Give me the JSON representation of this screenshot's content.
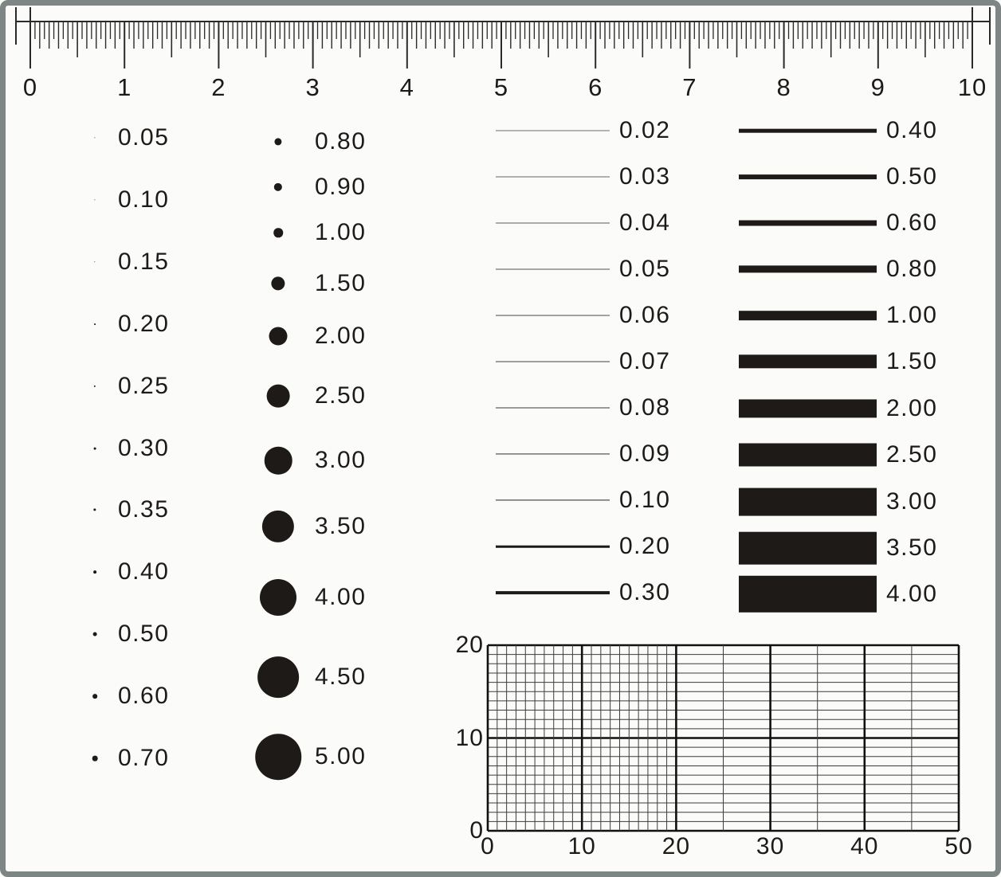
{
  "ruler": {
    "min": 0,
    "max": 10,
    "minor_step": 0.05,
    "tick_labels": [
      "0",
      "1",
      "2",
      "3",
      "4",
      "5",
      "6",
      "7",
      "8",
      "9",
      "10"
    ]
  },
  "dot_series_small": {
    "items": [
      {
        "label": "0.05",
        "value": 0.05
      },
      {
        "label": "0.10",
        "value": 0.1
      },
      {
        "label": "0.15",
        "value": 0.15
      },
      {
        "label": "0.20",
        "value": 0.2
      },
      {
        "label": "0.25",
        "value": 0.25
      },
      {
        "label": "0.30",
        "value": 0.3
      },
      {
        "label": "0.35",
        "value": 0.35
      },
      {
        "label": "0.40",
        "value": 0.4
      },
      {
        "label": "0.50",
        "value": 0.5
      },
      {
        "label": "0.60",
        "value": 0.6
      },
      {
        "label": "0.70",
        "value": 0.7
      }
    ]
  },
  "dot_series_large": {
    "items": [
      {
        "label": "0.80",
        "value": 0.8
      },
      {
        "label": "0.90",
        "value": 0.9
      },
      {
        "label": "1.00",
        "value": 1.0
      },
      {
        "label": "1.50",
        "value": 1.5
      },
      {
        "label": "2.00",
        "value": 2.0
      },
      {
        "label": "2.50",
        "value": 2.5
      },
      {
        "label": "3.00",
        "value": 3.0
      },
      {
        "label": "3.50",
        "value": 3.5
      },
      {
        "label": "4.00",
        "value": 4.0
      },
      {
        "label": "4.50",
        "value": 4.5
      },
      {
        "label": "5.00",
        "value": 5.0
      }
    ]
  },
  "line_series": {
    "items": [
      {
        "label": "0.02",
        "value": 0.02
      },
      {
        "label": "0.03",
        "value": 0.03
      },
      {
        "label": "0.04",
        "value": 0.04
      },
      {
        "label": "0.05",
        "value": 0.05
      },
      {
        "label": "0.06",
        "value": 0.06
      },
      {
        "label": "0.07",
        "value": 0.07
      },
      {
        "label": "0.08",
        "value": 0.08
      },
      {
        "label": "0.09",
        "value": 0.09
      },
      {
        "label": "0.10",
        "value": 0.1
      },
      {
        "label": "0.20",
        "value": 0.2
      },
      {
        "label": "0.30",
        "value": 0.3
      }
    ]
  },
  "bar_series": {
    "items": [
      {
        "label": "0.40",
        "value": 0.4
      },
      {
        "label": "0.50",
        "value": 0.5
      },
      {
        "label": "0.60",
        "value": 0.6
      },
      {
        "label": "0.80",
        "value": 0.8
      },
      {
        "label": "1.00",
        "value": 1.0
      },
      {
        "label": "1.50",
        "value": 1.5
      },
      {
        "label": "2.00",
        "value": 2.0
      },
      {
        "label": "2.50",
        "value": 2.5
      },
      {
        "label": "3.00",
        "value": 3.0
      },
      {
        "label": "3.50",
        "value": 3.5
      },
      {
        "label": "4.00",
        "value": 4.0
      }
    ]
  },
  "grid": {
    "x_min": 0,
    "x_max": 50,
    "y_min": 0,
    "y_max": 20,
    "x_tick_labels": [
      "0",
      "10",
      "20",
      "30",
      "40",
      "50"
    ],
    "y_tick_labels": [
      "20",
      "10",
      "0"
    ],
    "fine_region_x_max": 20,
    "fine_step": 1,
    "coarse_step": 5,
    "major_step": 10
  },
  "colors": {
    "ink": "#1d1a17",
    "frame": "#7e8585",
    "background": "#fbfbfa",
    "grid_thin": "#3c3c3c",
    "grid_thick": "#111111"
  }
}
